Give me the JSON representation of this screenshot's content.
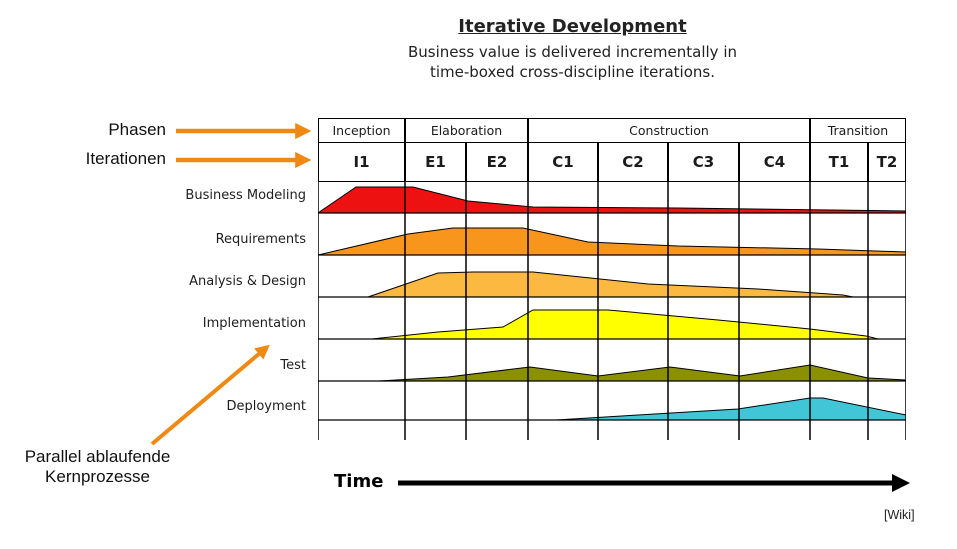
{
  "header": {
    "title": "Iterative Development",
    "subtitle_line1": "Business value is delivered incrementally in",
    "subtitle_line2": "time-boxed cross-discipline iterations."
  },
  "annotations": {
    "phases_label": "Phasen",
    "iterations_label": "Iterationen",
    "parallel_label_line1": "Parallel ablaufende",
    "parallel_label_line2": "Kernprozesse",
    "arrow_color": "#ef8913"
  },
  "phases": [
    {
      "label": "Inception"
    },
    {
      "label": "Elaboration"
    },
    {
      "label": "Construction"
    },
    {
      "label": "Transition"
    }
  ],
  "iterations": [
    "I1",
    "E1",
    "E2",
    "C1",
    "C2",
    "C3",
    "C4",
    "T1",
    "T2"
  ],
  "disciplines": [
    {
      "label": "Business Modeling",
      "color": "#ee1111",
      "profile": [
        [
          0,
          0
        ],
        [
          38,
          26
        ],
        [
          95,
          26
        ],
        [
          150,
          12
        ],
        [
          215,
          6
        ],
        [
          360,
          5
        ],
        [
          588,
          2
        ]
      ]
    },
    {
      "label": "Requirements",
      "color": "#f7951d",
      "profile": [
        [
          0,
          0
        ],
        [
          90,
          21
        ],
        [
          135,
          27
        ],
        [
          205,
          27
        ],
        [
          270,
          13
        ],
        [
          360,
          9
        ],
        [
          500,
          6
        ],
        [
          588,
          3
        ]
      ]
    },
    {
      "label": "Analysis & Design",
      "color": "#fbb942",
      "profile": [
        [
          50,
          0
        ],
        [
          120,
          24
        ],
        [
          155,
          25
        ],
        [
          215,
          25
        ],
        [
          330,
          13
        ],
        [
          440,
          8
        ],
        [
          525,
          2
        ],
        [
          535,
          0
        ]
      ]
    },
    {
      "label": "Implementation",
      "color": "#ffff00",
      "profile": [
        [
          54,
          0
        ],
        [
          120,
          7
        ],
        [
          185,
          12
        ],
        [
          215,
          29
        ],
        [
          290,
          29
        ],
        [
          400,
          19
        ],
        [
          492,
          10
        ],
        [
          548,
          3
        ],
        [
          560,
          0
        ]
      ]
    },
    {
      "label": "Test",
      "color": "#8b9000",
      "profile": [
        [
          60,
          0
        ],
        [
          130,
          4
        ],
        [
          212,
          14
        ],
        [
          280,
          5
        ],
        [
          352,
          14
        ],
        [
          422,
          5
        ],
        [
          492,
          16
        ],
        [
          550,
          3
        ],
        [
          588,
          1
        ]
      ]
    },
    {
      "label": "Deployment",
      "color": "#41c6d8",
      "profile": [
        [
          238,
          0
        ],
        [
          320,
          5
        ],
        [
          420,
          11
        ],
        [
          492,
          22
        ],
        [
          505,
          22
        ],
        [
          588,
          5
        ]
      ]
    }
  ],
  "footer": {
    "time_label": "Time",
    "attribution": "[Wiki]"
  }
}
